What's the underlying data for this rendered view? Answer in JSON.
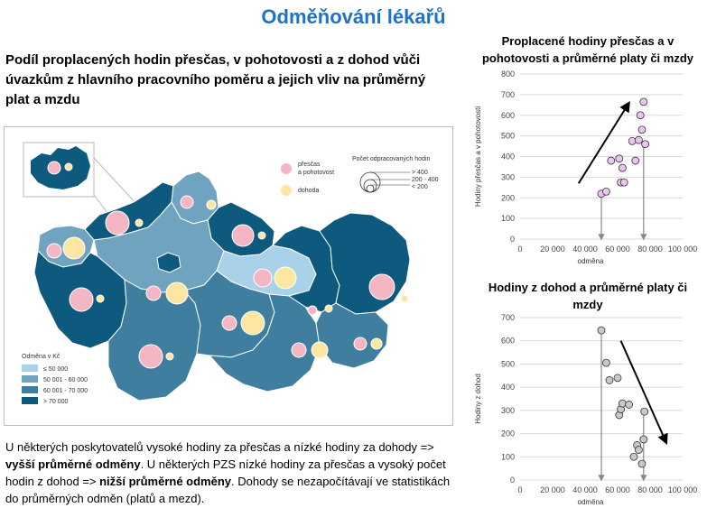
{
  "header": {
    "title": "Odměňování lékařů",
    "subtitle": "Podíl proplacených hodin přesčas, v pohotovosti a z dohod vůči úvazkům z hlavního pracovního poměru a jejich vliv na průměrný plat a mzdu"
  },
  "map": {
    "legend_bubbles": {
      "title": "Počet odpracovaných hodin",
      "items": [
        "> 400",
        "200 - 400",
        "< 200"
      ]
    },
    "legend_types": [
      {
        "label": "přesčas\na pohotovost",
        "color": "#f4b6c2"
      },
      {
        "label": "dohoda",
        "color": "#fbe7a1"
      }
    ],
    "legend_colors": {
      "title": "Odměna v Kč",
      "items": [
        {
          "label": "≤ 50 000",
          "color": "#a9d1e7"
        },
        {
          "label": "50 001 - 60 000",
          "color": "#6fa3c0"
        },
        {
          "label": "60 001 - 70 000",
          "color": "#3f7e9f"
        },
        {
          "label": "> 70 000",
          "color": "#0e5a7e"
        }
      ]
    }
  },
  "bottom_text": {
    "p1": "U některých poskytovatelů vysoké hodiny za přesčas a nízké hodiny za dohody => ",
    "b1": "vyšší průměrné odměny",
    "p2": ". U některých PZS nízké hodiny za přesčas a vysoký počet hodin z dohod => ",
    "b2": "nižší průměrné odměny",
    "p3": ". Dohody se nezapočítávají ve statistikách do průměrných odměn (platů a mezd)."
  },
  "chart_data": [
    {
      "type": "scatter",
      "title": "Proplacené hodiny přesčas a v pohotovosti a průměrné platy či mzdy",
      "xlabel": "odměna",
      "ylabel": "Hodiny přesčas a v pohotovosti",
      "xlim": [
        0,
        100000
      ],
      "ylim": [
        0,
        800
      ],
      "xticks": [
        "0",
        "20 000",
        "40 000",
        "60 000",
        "80 000",
        "100 000"
      ],
      "yticks": [
        "0",
        "100",
        "200",
        "300",
        "400",
        "500",
        "600",
        "700",
        "800"
      ],
      "grid": true,
      "point_color": "#e8c4ee",
      "x": [
        50000,
        53000,
        56000,
        61000,
        62000,
        63000,
        64000,
        69000,
        71000,
        73000,
        74000,
        75000,
        76000,
        77000
      ],
      "y": [
        220,
        230,
        380,
        390,
        275,
        345,
        275,
        475,
        380,
        480,
        600,
        530,
        665,
        460
      ],
      "annotations": [
        {
          "type": "arrow",
          "from": [
            36000,
            270
          ],
          "to": [
            67000,
            660
          ]
        },
        {
          "type": "arrow",
          "from": [
            50000,
            220
          ],
          "to": [
            50000,
            0
          ]
        },
        {
          "type": "arrow",
          "from": [
            76000,
            460
          ],
          "to": [
            76000,
            0
          ]
        }
      ]
    },
    {
      "type": "scatter",
      "title": "Hodiny z dohod a průměrné platy či mzdy",
      "xlabel": "odměna",
      "ylabel": "Hodiny z dohod",
      "xlim": [
        0,
        100000
      ],
      "ylim": [
        0,
        700
      ],
      "xticks": [
        "0",
        "20 000",
        "40 000",
        "60 000",
        "80 000",
        "100 000"
      ],
      "yticks": [
        "0",
        "100",
        "200",
        "300",
        "400",
        "500",
        "600",
        "700"
      ],
      "grid": true,
      "point_color": "#c8c8c8",
      "x": [
        50000,
        53000,
        55000,
        60000,
        61000,
        62000,
        63000,
        67000,
        70000,
        72000,
        73000,
        75000,
        76000,
        76500
      ],
      "y": [
        645,
        505,
        430,
        440,
        280,
        305,
        330,
        325,
        100,
        150,
        130,
        70,
        175,
        295
      ],
      "annotations": [
        {
          "type": "arrow",
          "from": [
            62000,
            600
          ],
          "to": [
            90000,
            160
          ]
        },
        {
          "type": "arrow",
          "from": [
            50000,
            640
          ],
          "to": [
            50000,
            0
          ]
        },
        {
          "type": "arrow",
          "from": [
            76000,
            295
          ],
          "to": [
            76000,
            0
          ]
        }
      ]
    }
  ]
}
